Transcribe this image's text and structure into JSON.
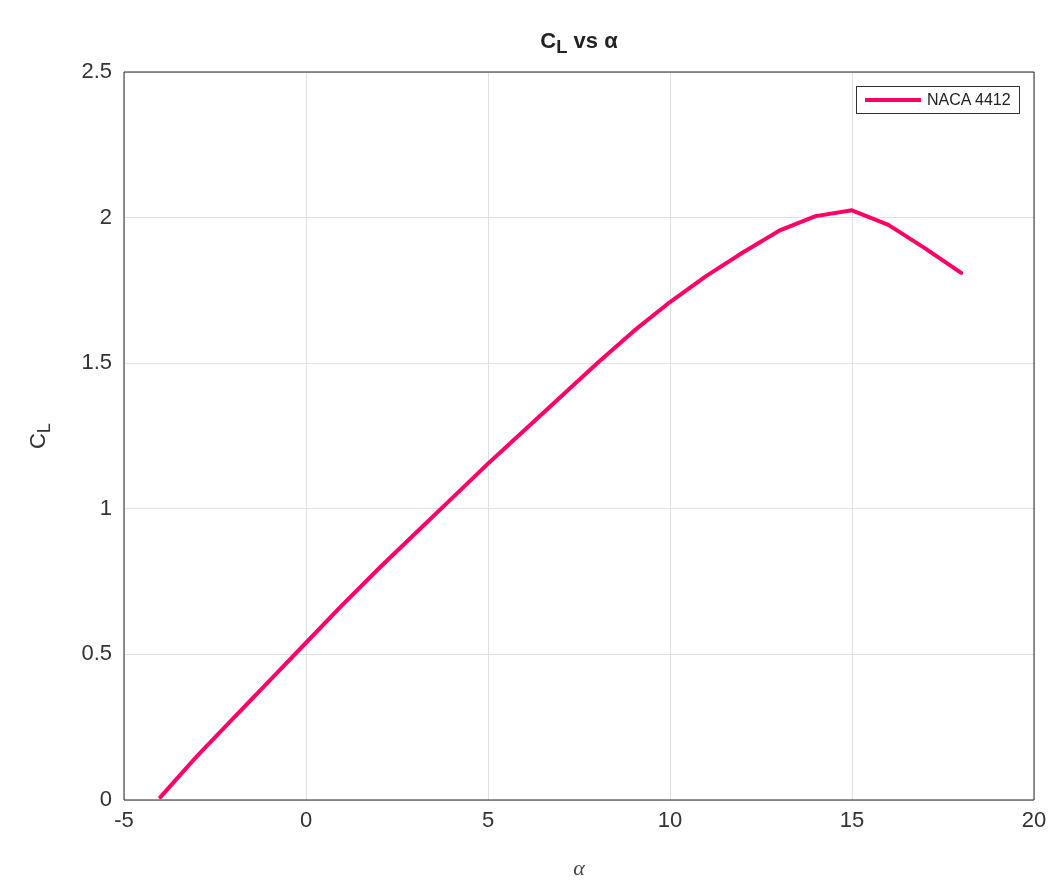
{
  "chart_data": {
    "type": "line",
    "title": "C$_{L}$ vs α",
    "xlabel": "α",
    "ylabel": "C$_{L}$",
    "x": [
      -4,
      -3,
      -2,
      -1,
      0,
      1,
      2,
      3,
      4,
      5,
      6,
      7,
      8,
      9,
      10,
      11,
      12,
      13,
      14,
      15,
      16,
      17,
      18
    ],
    "series": [
      {
        "name": "NACA 4412",
        "color": "#ff0066",
        "values": [
          0.01,
          0.15,
          0.28,
          0.41,
          0.54,
          0.67,
          0.795,
          0.915,
          1.035,
          1.155,
          1.27,
          1.385,
          1.5,
          1.61,
          1.71,
          1.8,
          1.88,
          1.955,
          2.005,
          2.025,
          1.975,
          1.895,
          1.81
        ]
      }
    ],
    "xlim": [
      -5,
      20
    ],
    "xticks": [
      -5,
      0,
      5,
      10,
      15,
      20
    ],
    "ylim": [
      0,
      2.5
    ],
    "yticks": [
      0,
      0.5,
      1,
      1.5,
      2,
      2.5
    ],
    "grid": true,
    "legend": "top right",
    "marker": "none",
    "line_style": "solid"
  }
}
